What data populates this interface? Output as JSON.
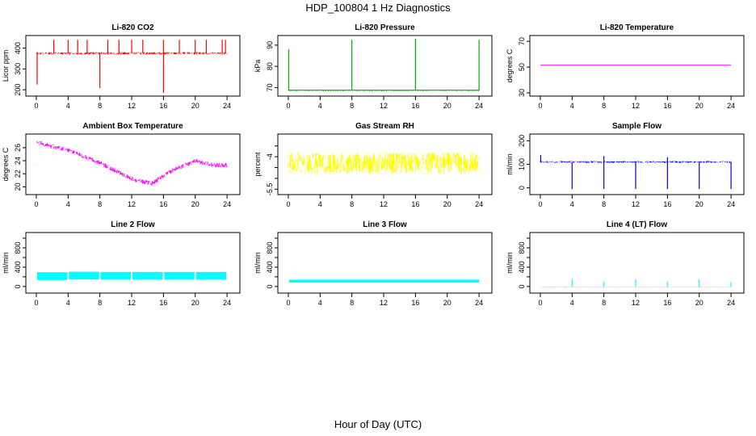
{
  "page": {
    "title": "HDP_100804  1 Hz Diagnostics",
    "xlabel": "Hour of Day (UTC)"
  },
  "chart_data": [
    {
      "id": "p1",
      "type": "line",
      "title": "Li-820 CO2",
      "ylabel": "Licor ppm",
      "color": "#ff0000",
      "xlim": [
        -0.3,
        24.6
      ],
      "ylim": [
        185,
        445
      ],
      "yticks": [
        200,
        300,
        400
      ],
      "xticks": [
        0,
        4,
        8,
        12,
        16,
        20,
        24
      ],
      "pattern": "noise",
      "base": 375,
      "band": 12,
      "spikes": [
        {
          "x": 2.2,
          "y": 440
        },
        {
          "x": 4,
          "y": 440
        },
        {
          "x": 5.2,
          "y": 440
        },
        {
          "x": 6.4,
          "y": 440
        },
        {
          "x": 9,
          "y": 440
        },
        {
          "x": 10.4,
          "y": 440
        },
        {
          "x": 12,
          "y": 440
        },
        {
          "x": 13.4,
          "y": 440
        },
        {
          "x": 16,
          "y": 440
        },
        {
          "x": 18,
          "y": 440
        },
        {
          "x": 20,
          "y": 440
        },
        {
          "x": 21.4,
          "y": 440
        },
        {
          "x": 23.4,
          "y": 440
        },
        {
          "x": 23.8,
          "y": 440
        }
      ],
      "drops": [
        {
          "x": 0.1,
          "y": 225
        },
        {
          "x": 8,
          "y": 208
        },
        {
          "x": 16,
          "y": 185
        }
      ]
    },
    {
      "id": "p2",
      "type": "line",
      "title": "Li-820 Pressure",
      "ylabel": "kPa",
      "color": "#00b000",
      "xlim": [
        -0.3,
        24.6
      ],
      "ylim": [
        67.5,
        93
      ],
      "yticks": [
        70,
        80,
        90
      ],
      "xticks": [
        0,
        4,
        8,
        12,
        16,
        20,
        24
      ],
      "pattern": "flat",
      "base": 68.8,
      "band": 0.3,
      "spikes": [
        {
          "x": 0.05,
          "y": 88
        },
        {
          "x": 8,
          "y": 92.5
        },
        {
          "x": 16,
          "y": 93
        },
        {
          "x": 24,
          "y": 92.5
        }
      ],
      "drops": []
    },
    {
      "id": "p3",
      "type": "line",
      "title": "Li-820 Temperature",
      "ylabel": "degrees C",
      "color": "#ff00ff",
      "xlim": [
        -0.3,
        24.6
      ],
      "ylim": [
        30,
        72
      ],
      "yticks": [
        30,
        50,
        70
      ],
      "xticks": [
        0,
        4,
        8,
        12,
        16,
        20,
        24
      ],
      "pattern": "flat",
      "base": 51.5,
      "band": 0,
      "spikes": [],
      "drops": []
    },
    {
      "id": "p4",
      "type": "line",
      "title": "Ambient Box Temperature",
      "ylabel": "degrees C",
      "color": "#ff00ff",
      "xlim": [
        -0.3,
        24.6
      ],
      "ylim": [
        19.3,
        27.6
      ],
      "yticks": [
        20,
        22,
        24,
        26
      ],
      "xticks": [
        0,
        4,
        8,
        12,
        16,
        20,
        24
      ],
      "pattern": "curve",
      "band": 0.7,
      "curve": [
        [
          0,
          26.8
        ],
        [
          4,
          25.6
        ],
        [
          8,
          23.7
        ],
        [
          12,
          21.2
        ],
        [
          14.5,
          20.5
        ],
        [
          17,
          22.4
        ],
        [
          20,
          24.0
        ],
        [
          22,
          23.4
        ],
        [
          24,
          23.3
        ]
      ],
      "spikes": [],
      "drops": []
    },
    {
      "id": "p5",
      "type": "line",
      "title": "Gas Stream RH",
      "ylabel": "percent",
      "color": "#ffff00",
      "xlim": [
        -0.3,
        24.6
      ],
      "ylim": [
        -5.6,
        -3.1
      ],
      "yticks": [
        -5.5,
        -4.0
      ],
      "yminor": [
        -5.0,
        -4.5,
        -3.5
      ],
      "xticks": [
        0,
        4,
        8,
        12,
        16,
        20,
        24
      ],
      "pattern": "noise",
      "base": -4.3,
      "band": 1.0,
      "spikes": [],
      "drops": []
    },
    {
      "id": "p6",
      "type": "line",
      "title": "Sample Flow",
      "ylabel": "ml/min",
      "color": "#0000dd",
      "xlim": [
        -0.3,
        24.6
      ],
      "ylim": [
        -15,
        215
      ],
      "yticks": [
        0,
        100,
        200
      ],
      "xticks": [
        0,
        4,
        8,
        12,
        16,
        20,
        24
      ],
      "pattern": "noise",
      "base": 110,
      "band": 8,
      "spikes": [
        {
          "x": 0.05,
          "y": 140
        },
        {
          "x": 8,
          "y": 135
        },
        {
          "x": 16,
          "y": 130
        }
      ],
      "drops": [
        {
          "x": 4,
          "y": -5
        },
        {
          "x": 8,
          "y": -5
        },
        {
          "x": 12,
          "y": -5
        },
        {
          "x": 16,
          "y": -5
        },
        {
          "x": 20,
          "y": -5
        },
        {
          "x": 24,
          "y": -5
        }
      ]
    },
    {
      "id": "p7",
      "type": "line",
      "title": "Line 2 Flow",
      "ylabel": "ml/min",
      "color": "#00ffff",
      "xlim": [
        -0.3,
        24.6
      ],
      "ylim": [
        -70,
        1050
      ],
      "yticks": [
        0,
        400,
        800
      ],
      "yminor": [
        200,
        600,
        1000
      ],
      "xticks": [
        0,
        4,
        8,
        12,
        16,
        20,
        24
      ],
      "pattern": "blocks",
      "band": 160,
      "blocks": [
        [
          0.1,
          3.9,
          215
        ],
        [
          4.1,
          7.9,
          225
        ],
        [
          8.1,
          11.9,
          220
        ],
        [
          12.1,
          15.9,
          220
        ],
        [
          16.1,
          19.9,
          220
        ],
        [
          20.1,
          23.9,
          220
        ]
      ],
      "spikes": [],
      "drops": []
    },
    {
      "id": "p8",
      "type": "line",
      "title": "Line 3 Flow",
      "ylabel": "ml/min",
      "color": "#00ffff",
      "xlim": [
        -0.3,
        24.6
      ],
      "ylim": [
        -70,
        1050
      ],
      "yticks": [
        0,
        400,
        800
      ],
      "yminor": [
        200,
        600,
        1000
      ],
      "xticks": [
        0,
        4,
        8,
        12,
        16,
        20,
        24
      ],
      "pattern": "blocks",
      "band": 60,
      "blocks": [
        [
          0.1,
          24,
          110
        ]
      ],
      "spikes": [],
      "drops": []
    },
    {
      "id": "p9",
      "type": "line",
      "title": "Line 4 (LT) Flow",
      "ylabel": "ml/min",
      "color": "#00ffff",
      "xlim": [
        -0.3,
        24.6
      ],
      "ylim": [
        -70,
        1050
      ],
      "yticks": [
        0,
        400,
        800
      ],
      "yminor": [
        200,
        600,
        1000
      ],
      "xticks": [
        0,
        4,
        8,
        12,
        16,
        20,
        24
      ],
      "pattern": "noise",
      "base": -10,
      "band": 12,
      "spikes": [
        {
          "x": 4,
          "y": 150
        },
        {
          "x": 8,
          "y": 100
        },
        {
          "x": 12,
          "y": 150
        },
        {
          "x": 16,
          "y": 100
        },
        {
          "x": 20,
          "y": 150
        },
        {
          "x": 24,
          "y": 90
        }
      ],
      "drops": []
    }
  ]
}
